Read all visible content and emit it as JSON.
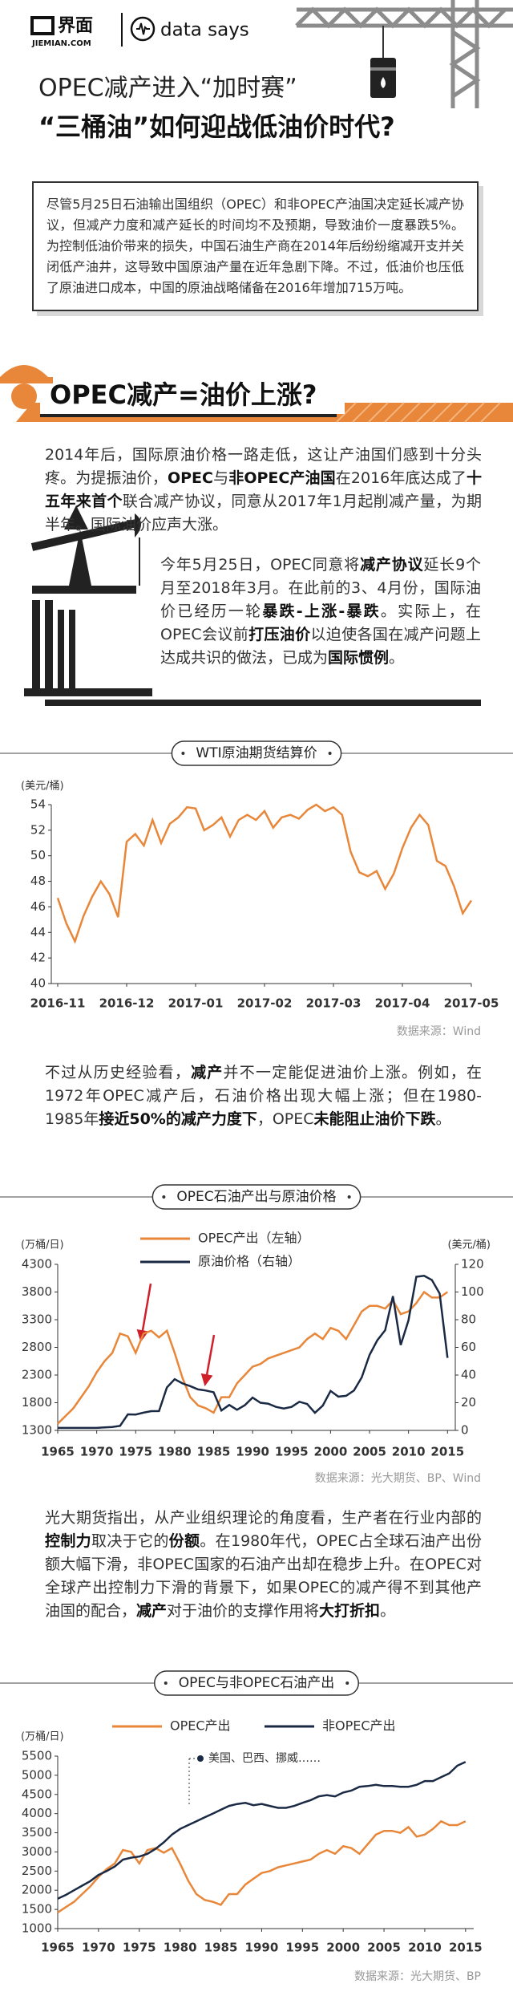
{
  "header": {
    "logo_cn": "界面",
    "logo_en": "JIEMIAN.COM",
    "brand": "data says",
    "title": "OPEC减产进入“加时赛”",
    "subtitle": "“三桶油”如何迎战低油价时代?"
  },
  "intro": "尽管5月25日石油输出国组织（OPEC）和非OPEC产油国决定延长减产协议，但减产力度和减产延长的时间均不及预期，导致油价一度暴跌5%。为控制低油价带来的损失，中国石油生产商在2014年后纷纷缩减开支并关闭低产油井，这导致中国原油产量在近年急剧下降。不过，低油价也压低了原油进口成本，中国的原油战略储备在2016年增加715万吨。",
  "section": {
    "heading": "OPEC减产=油价上涨?"
  },
  "paragraphs": [
    [
      {
        "text": "2014年后，国际原油价格一路走低，这让产油国们感到十分头疼。为提振油价，"
      },
      {
        "text": "OPEC",
        "bold": true
      },
      {
        "text": "与"
      },
      {
        "text": "非OPEC产油国",
        "bold": true
      },
      {
        "text": "在2016年底达成了"
      },
      {
        "text": "十五年来首个",
        "bold": true
      },
      {
        "text": "联合减产协议，同意从2017年1月起削减产量，为期半年。国际油价应声大涨。"
      }
    ],
    [
      {
        "text": "今年5月25日，OPEC同意将"
      },
      {
        "text": "减产协议",
        "bold": true
      },
      {
        "text": "延长9个月至2018年3月。在此前的3、4月份，国际油价已经历一轮"
      },
      {
        "text": "暴跌-上涨-暴跌",
        "bold": true
      },
      {
        "text": "。实际上，在OPEC会议前"
      },
      {
        "text": "打压油价",
        "bold": true
      },
      {
        "text": "以迫使各国在减产问题上达成共识的做法，已成为"
      },
      {
        "text": "国际惯例",
        "bold": true
      },
      {
        "text": "。"
      }
    ],
    [
      {
        "text": "不过从历史经验看，"
      },
      {
        "text": "减产",
        "bold": true
      },
      {
        "text": "并不一定能促进油价上涨。例如，在1972年OPEC减产后，石油价格出现大幅上涨；但在1980-1985年"
      },
      {
        "text": "接近50%的减产力度下",
        "bold": true
      },
      {
        "text": "，OPEC"
      },
      {
        "text": "未能阻止油价下跌",
        "bold": true
      },
      {
        "text": "。"
      }
    ],
    [
      {
        "text": "光大期货指出，从产业组织理论的角度看，生产者在行业内部的"
      },
      {
        "text": "控制力",
        "bold": true
      },
      {
        "text": "取决于它的"
      },
      {
        "text": "份额",
        "bold": true
      },
      {
        "text": "。在1980年代，OPEC占全球石油产出份额大幅下滑，非OPEC国家的石油产出却在稳步上升。在OPEC对全球产出控制力下滑的背景下，如果OPEC的减产得不到其他产油国的配合，"
      },
      {
        "text": "减产",
        "bold": true
      },
      {
        "text": "对于油价的支撑作用将"
      },
      {
        "text": "大打折扣",
        "bold": true
      },
      {
        "text": "。"
      }
    ]
  ],
  "chart_data": [
    {
      "type": "line",
      "title": "WTI原油期货结算价",
      "ylabel": "(美元/桶)",
      "color": "#e8873a",
      "categories": [
        "2016-11",
        null,
        null,
        null,
        null,
        null,
        null,
        null,
        "2016-12",
        null,
        null,
        null,
        null,
        null,
        null,
        null,
        "2017-01",
        null,
        null,
        null,
        null,
        null,
        null,
        null,
        "2017-02",
        null,
        null,
        null,
        null,
        null,
        null,
        null,
        "2017-03",
        null,
        null,
        null,
        null,
        null,
        null,
        null,
        "2017-04",
        null,
        null,
        null,
        null,
        null,
        null,
        null,
        "2017-05"
      ],
      "values": [
        46.7,
        44.7,
        43.3,
        45.3,
        46.8,
        48.0,
        47.0,
        45.2,
        51.1,
        51.7,
        50.8,
        52.8,
        51.0,
        52.5,
        53.0,
        53.8,
        53.7,
        52.0,
        52.4,
        53.0,
        51.5,
        52.8,
        53.2,
        52.8,
        53.5,
        52.2,
        53.0,
        53.2,
        52.9,
        53.6,
        54.0,
        53.5,
        53.8,
        53.2,
        50.3,
        48.7,
        48.4,
        48.8,
        47.4,
        48.6,
        50.6,
        52.2,
        53.2,
        52.4,
        49.6,
        49.2,
        47.6,
        45.5,
        46.5
      ],
      "ylim": [
        40,
        54
      ],
      "yticks": [
        40,
        42,
        44,
        46,
        48,
        50,
        52,
        54
      ],
      "source": "数据来源：Wind"
    },
    {
      "type": "line",
      "title": "OPEC石油产出与原油价格",
      "ylabel": "(万桶/日)",
      "y2label": "(美元/桶)",
      "x": [
        1965,
        1966,
        1967,
        1968,
        1969,
        1970,
        1971,
        1972,
        1973,
        1974,
        1975,
        1976,
        1977,
        1978,
        1979,
        1980,
        1981,
        1982,
        1983,
        1984,
        1985,
        1986,
        1987,
        1988,
        1989,
        1990,
        1991,
        1992,
        1993,
        1994,
        1995,
        1996,
        1997,
        1998,
        1999,
        2000,
        2001,
        2002,
        2003,
        2004,
        2005,
        2006,
        2007,
        2008,
        2009,
        2010,
        2011,
        2012,
        2013,
        2014,
        2015
      ],
      "xlim": [
        1965,
        2016
      ],
      "xticks": [
        1965,
        1970,
        1975,
        1980,
        1985,
        1990,
        1995,
        2000,
        2005,
        2010,
        2015
      ],
      "ylim": [
        1300,
        4300
      ],
      "yticks": [
        1300,
        1800,
        2300,
        2800,
        3300,
        3800,
        4300
      ],
      "y2lim": [
        0,
        120
      ],
      "y2ticks": [
        0,
        20,
        40,
        60,
        80,
        100,
        120
      ],
      "series": [
        {
          "name": "OPEC产出（左轴）",
          "color": "#e8873a",
          "values": [
            1420,
            1560,
            1700,
            1900,
            2100,
            2350,
            2550,
            2700,
            3050,
            3000,
            2700,
            3050,
            3100,
            2980,
            3100,
            2700,
            2250,
            1900,
            1750,
            1700,
            1620,
            1900,
            1900,
            2150,
            2300,
            2450,
            2500,
            2600,
            2650,
            2700,
            2750,
            2800,
            2950,
            3050,
            2950,
            3150,
            3100,
            2950,
            3200,
            3450,
            3550,
            3550,
            3500,
            3650,
            3400,
            3450,
            3600,
            3800,
            3700,
            3700,
            3800
          ]
        },
        {
          "name": "原油价格（右轴）",
          "color": "#1b2a44",
          "axis": "y2",
          "values": [
            1.8,
            1.8,
            1.8,
            1.8,
            1.8,
            1.8,
            2.2,
            2.5,
            3.3,
            11.6,
            11.5,
            12.8,
            13.9,
            14.0,
            31.0,
            37.0,
            34.0,
            32.0,
            29.6,
            28.8,
            27.6,
            14.4,
            18.4,
            14.9,
            18.2,
            23.7,
            20.0,
            19.3,
            17.0,
            15.8,
            17.0,
            20.7,
            19.1,
            12.7,
            17.9,
            28.5,
            24.4,
            25.0,
            28.8,
            38.3,
            54.5,
            65.1,
            72.4,
            97.0,
            61.7,
            79.5,
            111.0,
            111.7,
            108.7,
            98.9,
            52.4
          ]
        }
      ],
      "source": "数据来源：光大期货、BP、Wind"
    },
    {
      "type": "line",
      "title": "OPEC与非OPEC石油产出",
      "ylabel": "(万桶/日)",
      "x": [
        1965,
        1966,
        1967,
        1968,
        1969,
        1970,
        1971,
        1972,
        1973,
        1974,
        1975,
        1976,
        1977,
        1978,
        1979,
        1980,
        1981,
        1982,
        1983,
        1984,
        1985,
        1986,
        1987,
        1988,
        1989,
        1990,
        1991,
        1992,
        1993,
        1994,
        1995,
        1996,
        1997,
        1998,
        1999,
        2000,
        2001,
        2002,
        2003,
        2004,
        2005,
        2006,
        2007,
        2008,
        2009,
        2010,
        2011,
        2012,
        2013,
        2014,
        2015
      ],
      "xlim": [
        1965,
        2016
      ],
      "xticks": [
        1965,
        1970,
        1975,
        1980,
        1985,
        1990,
        1995,
        2000,
        2005,
        2010,
        2015
      ],
      "ylim": [
        1000,
        5500
      ],
      "yticks": [
        1000,
        1500,
        2000,
        2500,
        3000,
        3500,
        4000,
        4500,
        5000,
        5500
      ],
      "series": [
        {
          "name": "OPEC产出",
          "color": "#e8873a",
          "values": [
            1420,
            1560,
            1700,
            1900,
            2100,
            2350,
            2550,
            2700,
            3050,
            3000,
            2700,
            3050,
            3100,
            2980,
            3100,
            2700,
            2250,
            1900,
            1750,
            1700,
            1620,
            1900,
            1900,
            2150,
            2300,
            2450,
            2500,
            2600,
            2650,
            2700,
            2750,
            2800,
            2950,
            3050,
            2950,
            3150,
            3100,
            2950,
            3200,
            3450,
            3550,
            3550,
            3500,
            3650,
            3400,
            3450,
            3600,
            3800,
            3700,
            3700,
            3800
          ]
        },
        {
          "name": "非OPEC产出",
          "color": "#1b2a44",
          "values": [
            1780,
            1880,
            2000,
            2120,
            2240,
            2400,
            2500,
            2620,
            2800,
            2850,
            2880,
            2950,
            3080,
            3250,
            3450,
            3600,
            3700,
            3800,
            3900,
            4000,
            4100,
            4200,
            4250,
            4280,
            4220,
            4250,
            4200,
            4150,
            4150,
            4200,
            4280,
            4350,
            4450,
            4480,
            4450,
            4550,
            4600,
            4700,
            4720,
            4750,
            4720,
            4720,
            4700,
            4700,
            4750,
            4850,
            4850,
            4950,
            5050,
            5250,
            5350
          ]
        }
      ],
      "annotation": "美国、巴西、挪威……",
      "source": "数据来源：光大期货、BP"
    }
  ]
}
